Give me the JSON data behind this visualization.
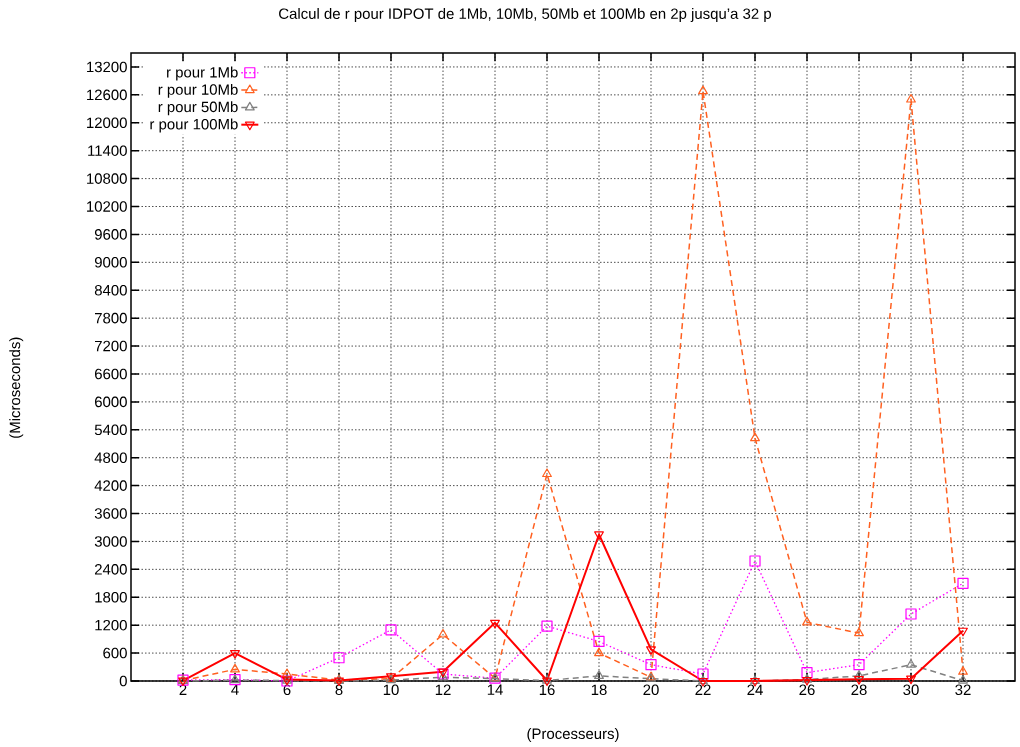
{
  "chart_data": {
    "type": "line",
    "title": "Calcul de r pour IDPOT de 1Mb, 10Mb, 50Mb et 100Mb en 2p jusqu’a 32 p",
    "xlabel": "(Processeurs)",
    "ylabel": "(Microseconds)",
    "x": [
      2,
      4,
      6,
      8,
      10,
      12,
      14,
      16,
      18,
      20,
      22,
      24,
      26,
      28,
      30,
      32
    ],
    "series": [
      {
        "name": "r pour 1Mb",
        "color": "#ff00ff",
        "marker": "square",
        "line_style": "dotted",
        "values": [
          20,
          30,
          0,
          500,
          1100,
          150,
          60,
          1180,
          850,
          350,
          150,
          2580,
          180,
          350,
          1440,
          2100
        ]
      },
      {
        "name": "r pour 10Mb",
        "color": "#ff6020",
        "marker": "triangle",
        "line_style": "dashed",
        "values": [
          10,
          250,
          150,
          20,
          50,
          1000,
          60,
          4450,
          600,
          80,
          12680,
          5220,
          1260,
          1030,
          12500,
          200
        ]
      },
      {
        "name": "r pour 50Mb",
        "color": "#808080",
        "marker": "triangle",
        "line_style": "dashed",
        "values": [
          0,
          20,
          10,
          0,
          20,
          80,
          50,
          10,
          110,
          50,
          0,
          0,
          30,
          110,
          350,
          10
        ]
      },
      {
        "name": "r pour 100Mb",
        "color": "#ff0000",
        "marker": "triangle-down",
        "line_style": "solid",
        "values": [
          10,
          600,
          30,
          10,
          100,
          200,
          1250,
          10,
          3150,
          680,
          0,
          0,
          20,
          40,
          50,
          1080
        ]
      }
    ],
    "xlim": [
      0,
      34
    ],
    "xticks": [
      2,
      4,
      6,
      8,
      10,
      12,
      14,
      16,
      18,
      20,
      22,
      24,
      26,
      28,
      30,
      32
    ],
    "ylim": [
      0,
      13500
    ],
    "yticks": [
      0,
      600,
      1200,
      1800,
      2400,
      3000,
      3600,
      4200,
      4800,
      5400,
      6000,
      6600,
      7200,
      7800,
      8400,
      9000,
      9600,
      10200,
      10800,
      11400,
      12000,
      12600,
      13200
    ],
    "grid": true,
    "legend": "top left"
  }
}
